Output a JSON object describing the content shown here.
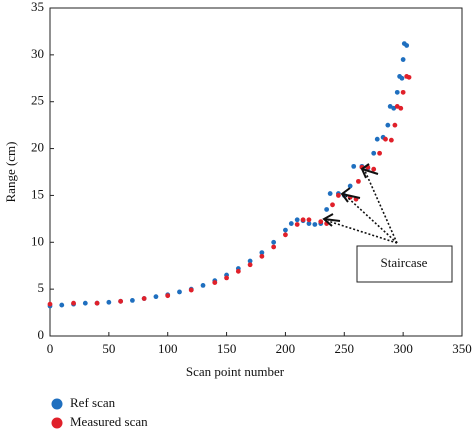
{
  "chart_data": {
    "type": "scatter",
    "xlabel": "Scan point number",
    "ylabel": "Range (cm)",
    "annotation": "Staircase",
    "xlim": [
      0,
      350
    ],
    "ylim": [
      0,
      35
    ],
    "xticks": [
      0,
      50,
      100,
      150,
      200,
      250,
      300,
      350
    ],
    "yticks": [
      0,
      5,
      10,
      15,
      20,
      25,
      30,
      35
    ],
    "series": [
      {
        "name": "Ref scan",
        "color": "#1f6fbf",
        "x": [
          0,
          10,
          20,
          30,
          40,
          50,
          60,
          70,
          80,
          90,
          100,
          110,
          120,
          130,
          140,
          150,
          160,
          170,
          180,
          190,
          200,
          205,
          210,
          215,
          220,
          225,
          230,
          235,
          238,
          245,
          250,
          255,
          258,
          265,
          270,
          275,
          278,
          283,
          287,
          289,
          292,
          295,
          297,
          299,
          300,
          301,
          303
        ],
        "values": [
          3.2,
          3.3,
          3.4,
          3.5,
          3.5,
          3.6,
          3.7,
          3.8,
          4.0,
          4.2,
          4.4,
          4.7,
          5.0,
          5.4,
          5.9,
          6.5,
          7.2,
          8.0,
          8.9,
          10.0,
          11.3,
          12.0,
          12.4,
          12.3,
          12.0,
          11.9,
          12.0,
          13.5,
          15.2,
          15.2,
          15.0,
          16.0,
          18.1,
          18.1,
          17.9,
          19.5,
          21.0,
          21.2,
          22.5,
          24.5,
          24.3,
          26.0,
          27.7,
          27.5,
          29.5,
          31.2,
          31.0
        ]
      },
      {
        "name": "Measured scan",
        "color": "#e0202a",
        "x": [
          0,
          20,
          40,
          60,
          80,
          100,
          120,
          140,
          150,
          160,
          170,
          180,
          190,
          200,
          210,
          215,
          220,
          230,
          235,
          240,
          245,
          255,
          260,
          262,
          265,
          270,
          275,
          280,
          285,
          290,
          293,
          295,
          298,
          300,
          303,
          305
        ],
        "values": [
          3.4,
          3.5,
          3.5,
          3.7,
          4.0,
          4.3,
          4.9,
          5.7,
          6.2,
          6.9,
          7.6,
          8.5,
          9.5,
          10.8,
          11.9,
          12.4,
          12.4,
          12.2,
          12.0,
          14.0,
          15.0,
          14.8,
          14.6,
          16.5,
          18.0,
          18.0,
          17.8,
          19.5,
          21.0,
          20.9,
          22.5,
          24.5,
          24.3,
          26.0,
          27.7,
          27.6
        ]
      }
    ]
  }
}
